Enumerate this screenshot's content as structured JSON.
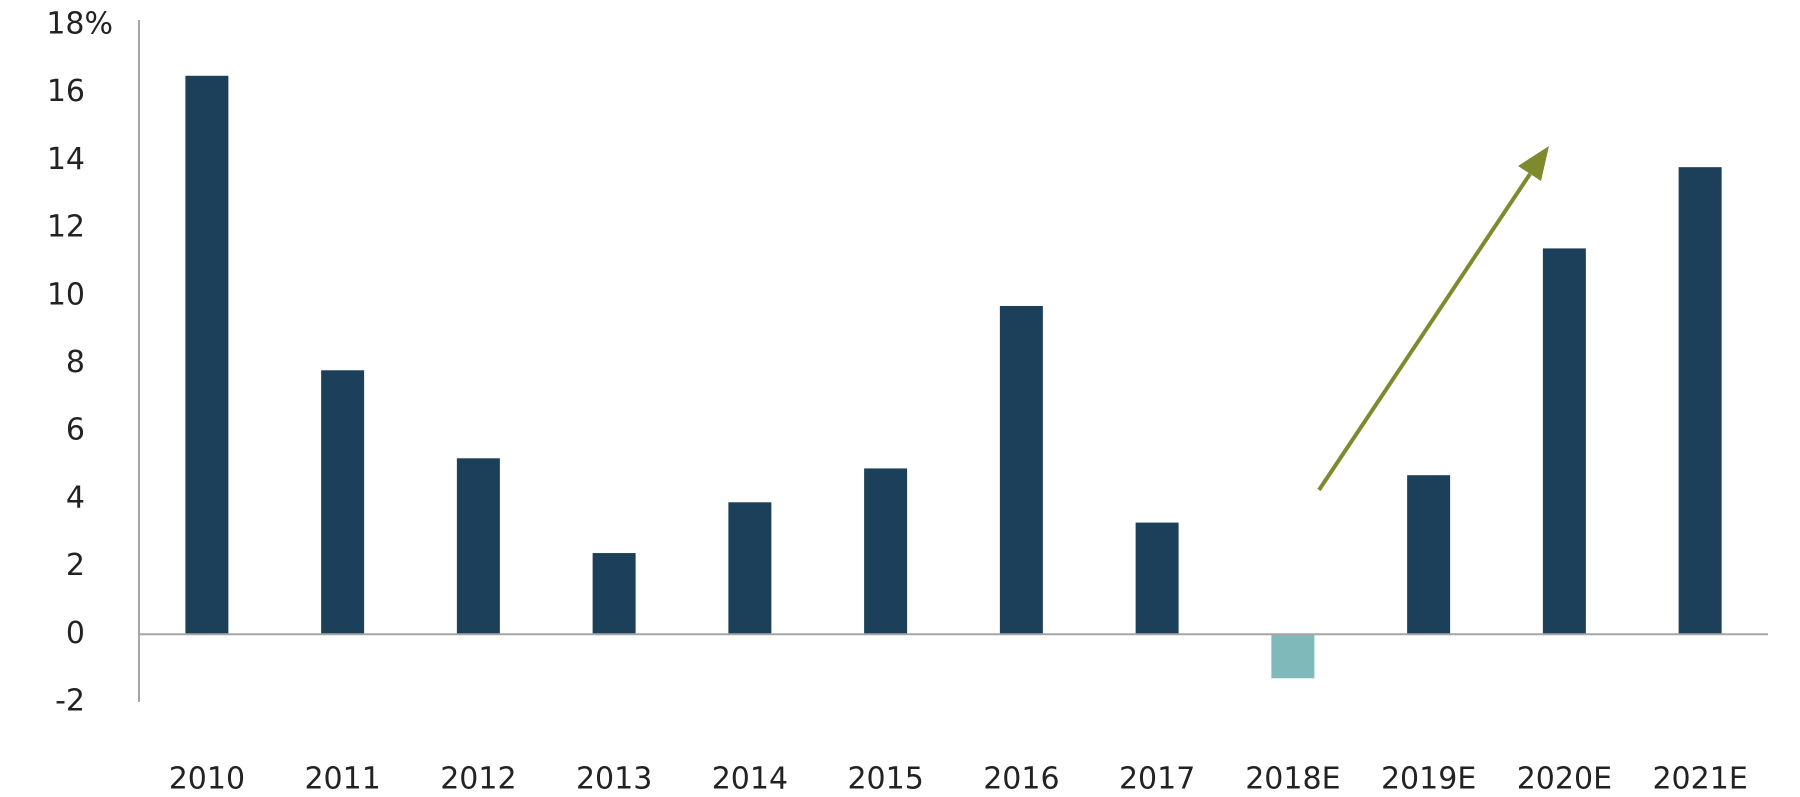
{
  "chart_data": {
    "type": "bar",
    "categories": [
      "2010",
      "2011",
      "2012",
      "2013",
      "2014",
      "2015",
      "2016",
      "2017",
      "2018E",
      "2019E",
      "2020E",
      "2021E"
    ],
    "values": [
      16.5,
      7.8,
      5.2,
      2.4,
      3.9,
      4.9,
      9.7,
      3.3,
      -1.3,
      4.7,
      11.4,
      13.8
    ],
    "colors": [
      "#1c4059",
      "#1c4059",
      "#1c4059",
      "#1c4059",
      "#1c4059",
      "#1c4059",
      "#1c4059",
      "#1c4059",
      "#80b9b9",
      "#1c4059",
      "#1c4059",
      "#1c4059"
    ],
    "ylim": [
      -2,
      18
    ],
    "yticks": [
      -2,
      0,
      2,
      4,
      6,
      8,
      10,
      12,
      14,
      16,
      {
        "value": 18,
        "label": "18%"
      }
    ],
    "grid": false
  }
}
